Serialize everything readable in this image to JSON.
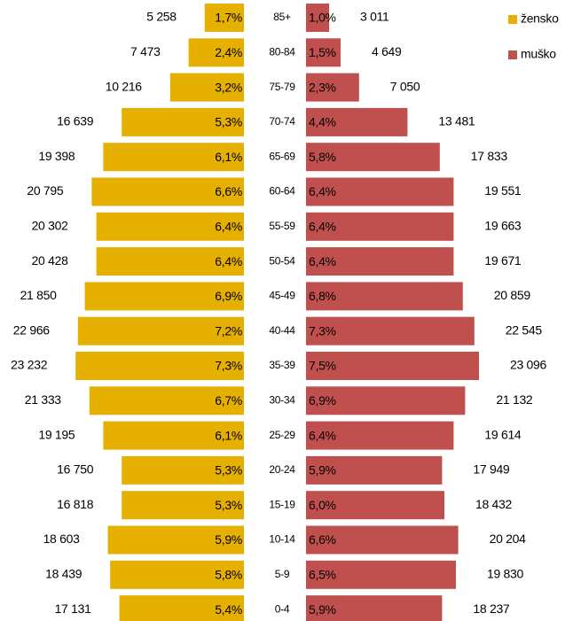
{
  "chart_data": {
    "type": "bar",
    "categories": [
      "85+",
      "80-84",
      "75-79",
      "70-74",
      "65-69",
      "60-64",
      "55-59",
      "50-54",
      "45-49",
      "40-44",
      "35-39",
      "30-34",
      "25-29",
      "20-24",
      "15-19",
      "10-14",
      "5-9",
      "0-4"
    ],
    "series": [
      {
        "name": "žensko",
        "color": "#e6b000",
        "values": [
          1.7,
          2.4,
          3.2,
          5.3,
          6.1,
          6.6,
          6.4,
          6.4,
          6.9,
          7.2,
          7.3,
          6.7,
          6.1,
          5.3,
          5.3,
          5.9,
          5.8,
          5.4
        ],
        "value_labels": [
          "1,7%",
          "2,4%",
          "3,2%",
          "5,3%",
          "6,1%",
          "6,6%",
          "6,4%",
          "6,4%",
          "6,9%",
          "7,2%",
          "7,3%",
          "6,7%",
          "6,1%",
          "5,3%",
          "5,3%",
          "5,9%",
          "5,8%",
          "5,4%"
        ],
        "counts": [
          5258,
          7473,
          10216,
          16639,
          19398,
          20795,
          20302,
          20428,
          21850,
          22966,
          23232,
          21333,
          19195,
          16750,
          16818,
          18603,
          18439,
          17131
        ],
        "count_labels": [
          "5 258",
          "7 473",
          "10 216",
          "16 639",
          "19 398",
          "20 795",
          "20 302",
          "20 428",
          "21 850",
          "22 966",
          "23 232",
          "21 333",
          "19 195",
          "16 750",
          "16 818",
          "18 603",
          "18 439",
          "17 131"
        ]
      },
      {
        "name": "muško",
        "color": "#c0504d",
        "values": [
          1.0,
          1.5,
          2.3,
          4.4,
          5.8,
          6.4,
          6.4,
          6.4,
          6.8,
          7.3,
          7.5,
          6.9,
          6.4,
          5.9,
          6.0,
          6.6,
          6.5,
          5.9
        ],
        "value_labels": [
          "1,0%",
          "1,5%",
          "2,3%",
          "4,4%",
          "5,8%",
          "6,4%",
          "6,4%",
          "6,4%",
          "6,8%",
          "7,3%",
          "7,5%",
          "6,9%",
          "6,4%",
          "5,9%",
          "6,0%",
          "6,6%",
          "6,5%",
          "5,9%"
        ],
        "counts": [
          3011,
          4649,
          7050,
          13481,
          17833,
          19551,
          19663,
          19671,
          20859,
          22545,
          23096,
          21132,
          19614,
          17949,
          18432,
          20204,
          19830,
          18237
        ],
        "count_labels": [
          "3 011",
          "4 649",
          "7 050",
          "13 481",
          "17 833",
          "19 551",
          "19 663",
          "19 671",
          "20 859",
          "22 545",
          "23 096",
          "21 132",
          "19 614",
          "17 949",
          "18 432",
          "20 204",
          "19 830",
          "18 237"
        ]
      }
    ]
  }
}
